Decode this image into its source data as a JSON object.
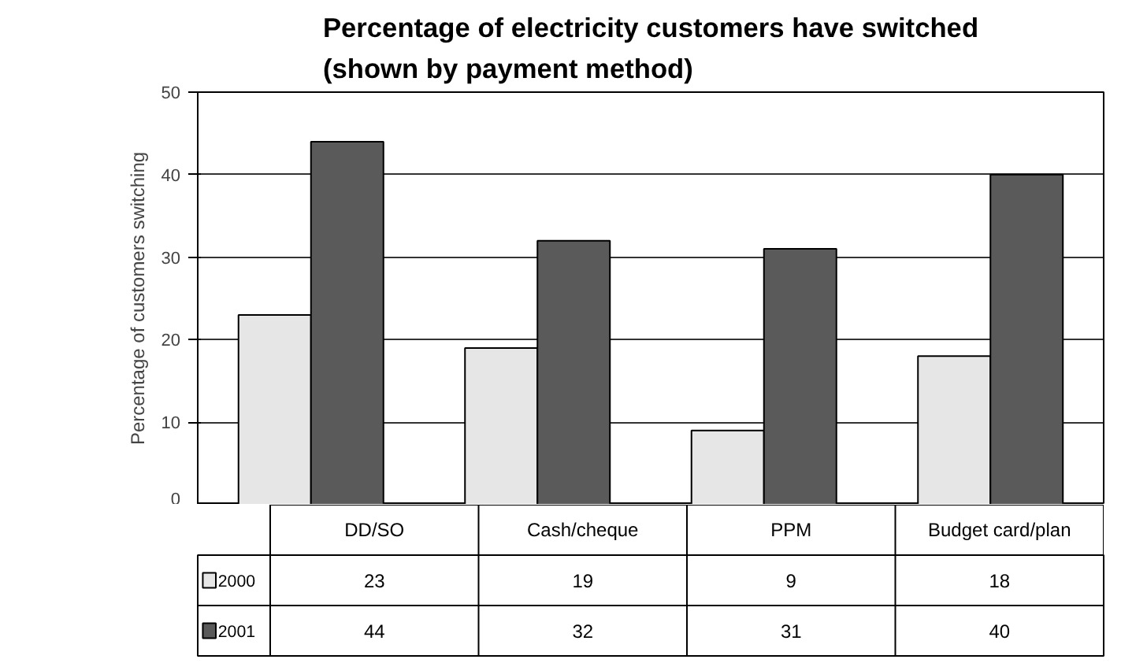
{
  "chart_data": {
    "type": "bar",
    "title": "Percentage of electricity customers have switched\n(shown by payment method)",
    "ylabel": "Percentage of customers switching",
    "categories": [
      "DD/SO",
      "Cash/cheque",
      "PPM",
      "Budget card/plan"
    ],
    "series": [
      {
        "name": "2000",
        "color": "#e6e6e6",
        "values": [
          23,
          19,
          9,
          18
        ]
      },
      {
        "name": "2001",
        "color": "#5a5a5a",
        "values": [
          44,
          32,
          31,
          40
        ]
      }
    ],
    "ylim": [
      0,
      50
    ],
    "yticks": [
      0,
      10,
      20,
      30,
      40,
      50
    ],
    "grid": "y",
    "legend": "bottom left",
    "data_labels": true
  }
}
